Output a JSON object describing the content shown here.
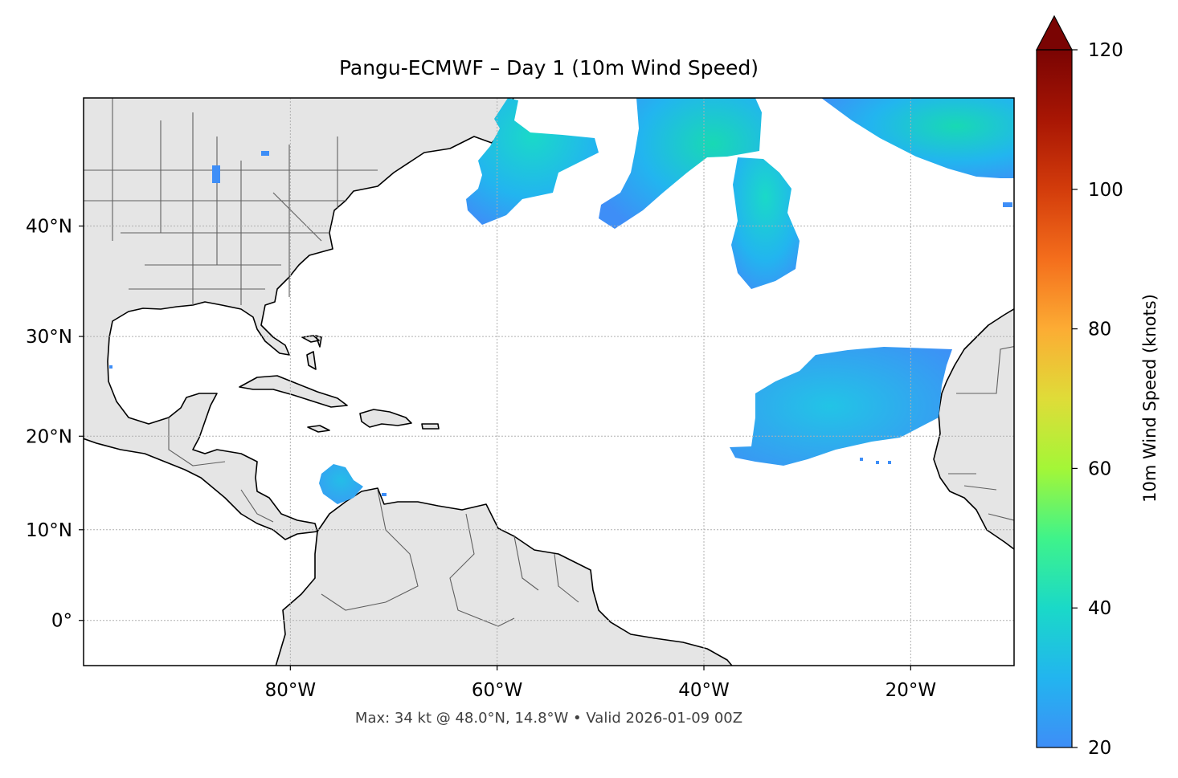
{
  "title": "Pangu-ECMWF – Day 1 (10m Wind Speed)",
  "footnote": "Max: 34 kt @ 48.0°N, 14.8°W • Valid 2026-01-09 00Z",
  "map": {
    "extent": {
      "lon_min": -100,
      "lon_max": -10,
      "lat_min": -5,
      "lat_max": 50
    },
    "lon_ticks": [
      {
        "value": -80,
        "label": "80°W"
      },
      {
        "value": -60,
        "label": "60°W"
      },
      {
        "value": -40,
        "label": "40°W"
      },
      {
        "value": -20,
        "label": "20°W"
      }
    ],
    "lat_ticks": [
      {
        "value": 40,
        "label": "40°N"
      },
      {
        "value": 30,
        "label": "30°N"
      },
      {
        "value": 20,
        "label": "20°N"
      },
      {
        "value": 10,
        "label": "10°N"
      },
      {
        "value": 0,
        "label": "0°"
      }
    ],
    "gridlines": true,
    "land_color": "#e5e5e5",
    "ocean_color": "#ffffff"
  },
  "colorbar": {
    "label": "10m Wind Speed (knots)",
    "min": 20,
    "max": 120,
    "ticks": [
      20,
      40,
      60,
      80,
      100,
      120
    ],
    "extend": "max",
    "colors": [
      "#3e8ef7",
      "#22b5ef",
      "#1ad9c8",
      "#3ff38a",
      "#a4f637",
      "#dfdc38",
      "#fcac34",
      "#f46e1c",
      "#d33c0b",
      "#a81604",
      "#7a0403"
    ]
  },
  "chart_data": {
    "type": "heatmap",
    "variable": "10m Wind Speed",
    "units": "knots",
    "max_value": 34,
    "max_location": {
      "lat": 48.0,
      "lon": -14.8
    },
    "valid": "2026-01-09 00Z",
    "regions": [
      {
        "id": "newfoundland-south",
        "speed_range": [
          20,
          26
        ]
      },
      {
        "id": "central-north-atlantic",
        "speed_range": [
          20,
          30
        ]
      },
      {
        "id": "azores",
        "speed_range": [
          20,
          29
        ]
      },
      {
        "id": "northeast-atlantic",
        "speed_range": [
          22,
          34
        ]
      },
      {
        "id": "canary-trades",
        "speed_range": [
          20,
          26
        ]
      },
      {
        "id": "caribbean-south",
        "speed_range": [
          20,
          22
        ]
      }
    ]
  }
}
